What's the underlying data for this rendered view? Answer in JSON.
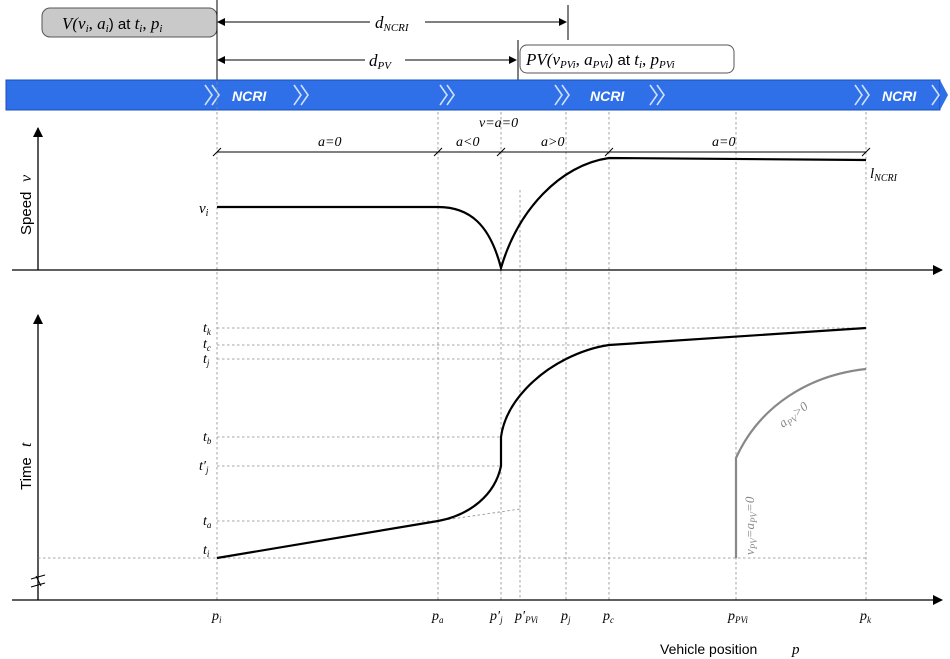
{
  "top_labels": {
    "vehicle_box": "V(v_i, a_i) at t_i, p_i",
    "vehicle_box_parts": {
      "V": "V(",
      "v": "v",
      "vi": "i",
      "comma": ", ",
      "a": "a",
      "ai": "i",
      "at": ") at ",
      "t": "t",
      "ti": "i",
      "comma2": ", ",
      "p": "p",
      "pi": "i"
    },
    "d_ncri": "d",
    "d_ncri_sub": "NCRI",
    "d_pv": "d",
    "d_pv_sub": "PV",
    "pv_box_parts": {
      "PV": "PV(",
      "v": "v",
      "vsub": "PVi",
      "comma": ", ",
      "a": "a",
      "asub": "PVi",
      "at": ") at ",
      "t": "t",
      "tsub": "i",
      "comma2": ", ",
      "p": "p",
      "psub": "PVi"
    }
  },
  "road": {
    "ncri_label": "NCRI",
    "color": "#2f6fe8"
  },
  "speed_panel": {
    "y_axis_label": "Speed",
    "y_axis_symbol": "v",
    "v_i": "v",
    "v_i_sub": "i",
    "segments": [
      "a=0",
      "a<0",
      "a>0",
      "a=0"
    ],
    "v_a_zero": "v=a=0",
    "l_ncri": "l",
    "l_ncri_sub": "NCRI"
  },
  "time_panel": {
    "y_axis_label": "Time",
    "y_axis_symbol": "t",
    "ticks": [
      {
        "main": "t",
        "sub": "k"
      },
      {
        "main": "t",
        "sub": "c"
      },
      {
        "main": "t",
        "sub": "j"
      },
      {
        "main": "t",
        "sub": "b"
      },
      {
        "main": "t′",
        "sub": "j"
      },
      {
        "main": "t",
        "sub": "a"
      },
      {
        "main": "t",
        "sub": "i"
      }
    ],
    "pv_acc": "a",
    "pv_acc_sub": "PV",
    "pv_acc_rest": ">0",
    "pv_zero": "v",
    "pv_zero_sub": "PV",
    "pv_zero_mid": "=a",
    "pv_zero_sub2": "PV",
    "pv_zero_rest": "=0"
  },
  "x_axis": {
    "label": "Vehicle position",
    "symbol": "p",
    "ticks": [
      {
        "main": "p",
        "sub": "i"
      },
      {
        "main": "p",
        "sub": "a"
      },
      {
        "main": "p′",
        "sub": "j"
      },
      {
        "main": "p′",
        "sub": "PVi"
      },
      {
        "main": "p",
        "sub": "j"
      },
      {
        "main": "p",
        "sub": "c"
      },
      {
        "main": "p",
        "sub": "PVi"
      },
      {
        "main": "p",
        "sub": "k"
      }
    ]
  }
}
